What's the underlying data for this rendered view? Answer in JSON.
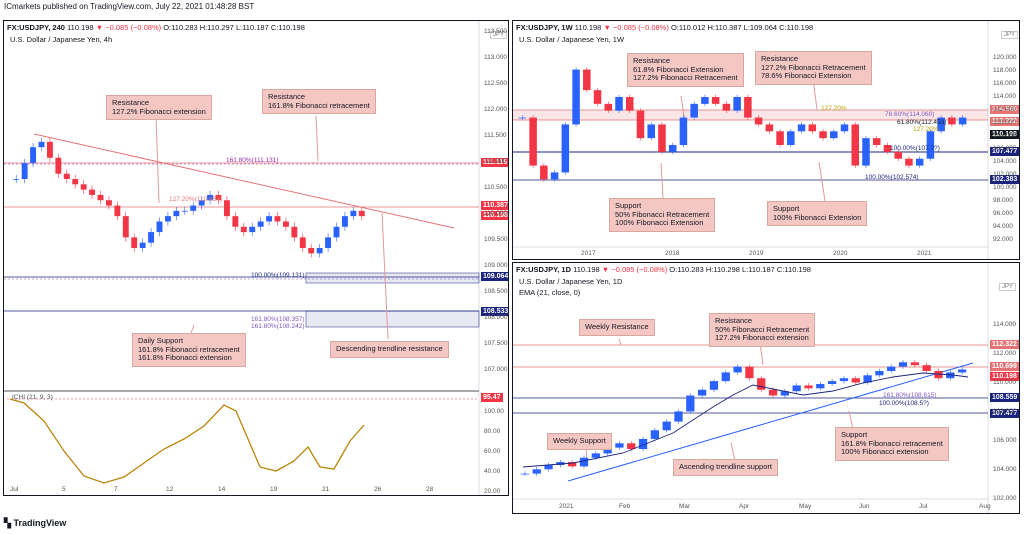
{
  "header": {
    "text": "ICmarkets published on TradingView.com, July 22, 2021 01:48:28 BST"
  },
  "panels": {
    "p1": {
      "symbol": "FX:USDJPY, 240",
      "ohlc": {
        "pre": "110.198",
        "chg": "−0.085 (−0.08%)",
        "o": "O:110.283",
        "h": "H:110.297",
        "l": "L:110.187",
        "c": "C:110.198"
      },
      "title": "U.S. Dollar / Japanese Yen, 4h",
      "currency": "JPY",
      "yticks": [
        "113.500",
        "113.000",
        "112.500",
        "112.000",
        "111.500",
        "111.000",
        "110.500",
        "110.000",
        "109.500",
        "109.000",
        "108.500",
        "108.000",
        "107.500",
        "107.000"
      ],
      "xticks": [
        "Jul",
        "5",
        "7",
        "12",
        "14",
        "19",
        "21",
        "26",
        "28"
      ],
      "osc_ticks": [
        "100.00",
        "80.00",
        "60.00",
        "40.00",
        "20.00",
        "0.00"
      ],
      "osc_label": "ICHI (21, 9, 3)",
      "tags": {
        "a": "111.116",
        "b": "110.387",
        "c": "110.198",
        "d": "109.064",
        "e": "108.533",
        "f": "95.47"
      },
      "fibs": {
        "f1": "161.80%(111.131)",
        "f2": "127.20%(110.454)",
        "f3": "100.00%(109.131)",
        "f4": "161.80%(108.357)",
        "f5": "161.80%(108.242)"
      },
      "notes": {
        "n1": "Resistance\n127.2% Fibonacci extension",
        "n2": "Resistance\n161.8% Fibonacci retracement",
        "n3": "Daily Support\n161.8% Fibonacci retracement\n161.8% Fibonacci extension",
        "n4": "Descending trendline resistance"
      }
    },
    "p2": {
      "symbol": "FX:USDJPY, 1W",
      "ohlc": {
        "pre": "110.198",
        "chg": "−0.085 (−0.08%)",
        "o": "O:110.012",
        "h": "H:110.387",
        "l": "L:109.064",
        "c": "C:110.198"
      },
      "title": "U.S. Dollar / Japanese Yen, 1W",
      "currency": "JPY",
      "yticks": [
        "120.000",
        "118.000",
        "116.000",
        "114.000",
        "112.000",
        "110.000",
        "108.000",
        "106.000",
        "104.000",
        "102.000",
        "100.000",
        "98.000",
        "96.000",
        "94.000",
        "92.000"
      ],
      "xticks": [
        "2017",
        "2018",
        "2019",
        "2020",
        "2021"
      ],
      "tags": {
        "a": "114.565",
        "b": "112.322",
        "c": "110.198",
        "d": "107.477",
        "e": "102.383"
      },
      "fibs": {
        "f1": "127.20%",
        "f2": "78.60%(114.060)",
        "f3": "61.80%(112.453)",
        "f4": "127.20%",
        "f5": "100.00%(107.7?)",
        "f6": "100.00%(102.574)"
      },
      "notes": {
        "n1": "Resistance\n61.8% Fibonacci Extension\n127.2% Fibonacci Retracement",
        "n2": "Resistance\n127.2% Fibonacci Retracement\n78.6% Fibonacci Extension",
        "n3": "Support\n50% Fibonacci Retracement\n100% Fibonacci Extension",
        "n4": "Support\n100% Fibonacci Extension"
      }
    },
    "p3": {
      "symbol": "FX:USDJPY, 1D",
      "ohlc": {
        "pre": "110.198",
        "chg": "−0.085 (−0.08%)",
        "o": "O:110.283",
        "h": "H:110.298",
        "l": "L:110.187",
        "c": "C:110.198"
      },
      "title": "U.S. Dollar / Japanese Yen, 1D",
      "ema": "EMA (21, close, 0)",
      "currency": "JPY",
      "yticks": [
        "114.000",
        "112.000",
        "110.000",
        "108.000",
        "106.000",
        "104.000",
        "102.000"
      ],
      "xticks": [
        "2021",
        "Feb",
        "Mar",
        "Apr",
        "May",
        "Jun",
        "Jul",
        "Aug"
      ],
      "tags": {
        "a": "112.322",
        "b": "110.699",
        "c": "110.198",
        "d": "108.559",
        "e": "107.477"
      },
      "fibs": {
        "f1": "161.80%(108.615)",
        "f2": "100.00%(108.5?)"
      },
      "notes": {
        "n1": "Weekly Resistance",
        "n2": "Resistance\n50% Fibonacci Retracement\n127.2% Fibonacci extension",
        "n3": "Weekly Support",
        "n4": "Ascending trendline support",
        "n5": "Support\n161.8% Fibonacci retracement\n100% Fibonacci extension"
      }
    }
  },
  "footer": {
    "logo": "TradingView"
  },
  "colors": {
    "up": "#2962ff",
    "down": "#f23645",
    "resistance": "#e57373",
    "support": "#1a237e",
    "osc": "#b8860b",
    "note_bg": "#f4c7c3"
  },
  "chart_data": [
    {
      "type": "candlestick",
      "title": "U.S. Dollar / Japanese Yen, 4h",
      "ylim": [
        107.0,
        113.5
      ],
      "close_path": [
        110.9,
        111.2,
        111.5,
        111.6,
        111.3,
        111.0,
        110.9,
        110.8,
        110.7,
        110.6,
        110.5,
        110.4,
        110.2,
        109.8,
        109.6,
        109.7,
        109.9,
        110.1,
        110.2,
        110.3,
        110.3,
        110.4,
        110.5,
        110.6,
        110.5,
        110.2,
        110.0,
        109.9,
        110.0,
        110.1,
        110.2,
        110.1,
        110.0,
        109.8,
        109.6,
        109.5,
        109.6,
        109.8,
        110.0,
        110.2,
        110.3,
        110.2
      ],
      "levels": [
        111.131,
        110.454,
        109.131,
        108.357,
        108.242
      ]
    },
    {
      "type": "candlestick",
      "title": "U.S. Dollar / Japanese Yen, 1W",
      "ylim": [
        92.0,
        120.0
      ],
      "close_path": [
        110,
        103,
        101,
        102,
        109,
        117,
        114,
        112,
        111,
        113,
        111,
        107,
        109,
        105,
        106,
        110,
        112,
        113,
        112,
        111,
        113,
        110,
        109,
        108,
        106,
        108,
        109,
        108,
        107,
        108,
        109,
        103,
        107,
        106,
        105,
        104,
        103,
        104,
        108,
        110,
        109,
        110
      ],
      "levels": [
        114.565,
        112.322,
        107.477,
        102.383
      ]
    },
    {
      "type": "candlestick",
      "title": "U.S. Dollar / Japanese Yen, 1D",
      "ylim": [
        102.0,
        115.0
      ],
      "close_path": [
        103.2,
        103.5,
        103.8,
        104.0,
        103.7,
        104.3,
        104.6,
        105.0,
        105.3,
        104.9,
        105.6,
        106.2,
        106.8,
        107.5,
        108.6,
        109.0,
        109.6,
        110.2,
        110.6,
        109.8,
        109.0,
        108.6,
        108.9,
        109.3,
        109.1,
        109.4,
        109.6,
        109.8,
        109.5,
        110.0,
        110.3,
        110.6,
        110.9,
        110.7,
        110.3,
        109.8,
        110.2,
        110.4
      ],
      "levels": [
        112.322,
        110.699,
        108.559,
        107.477
      ]
    }
  ]
}
